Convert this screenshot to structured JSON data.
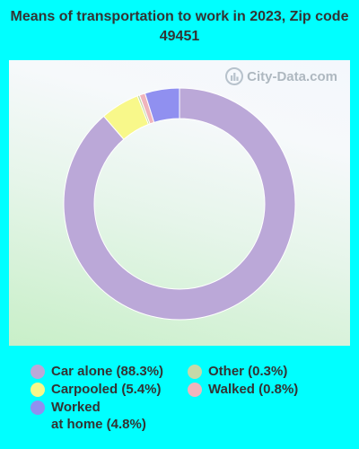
{
  "title": "Means of transportation to work in 2023, Zip code 49451",
  "watermark": "City-Data.com",
  "colors": {
    "background": "#00ffff"
  },
  "chart_data": {
    "type": "pie",
    "donut": true,
    "title": "Means of transportation to work in 2023, Zip code 49451",
    "start_angle_deg": 0,
    "direction": "clockwise",
    "legend_placement": "bottom",
    "slices": [
      {
        "label": "Car alone (88.3%)",
        "value": 88.3,
        "color": "#bba8d8"
      },
      {
        "label": "Other (0.3%)",
        "value": 0.3,
        "color": "#c5d9a8"
      },
      {
        "label": "Carpooled (5.4%)",
        "value": 5.4,
        "color": "#f8f88a"
      },
      {
        "label": "Walked (0.8%)",
        "value": 0.8,
        "color": "#f0b4bc"
      },
      {
        "label": "Worked\nat home (4.8%)",
        "value": 4.8,
        "color": "#9090f0"
      }
    ]
  }
}
